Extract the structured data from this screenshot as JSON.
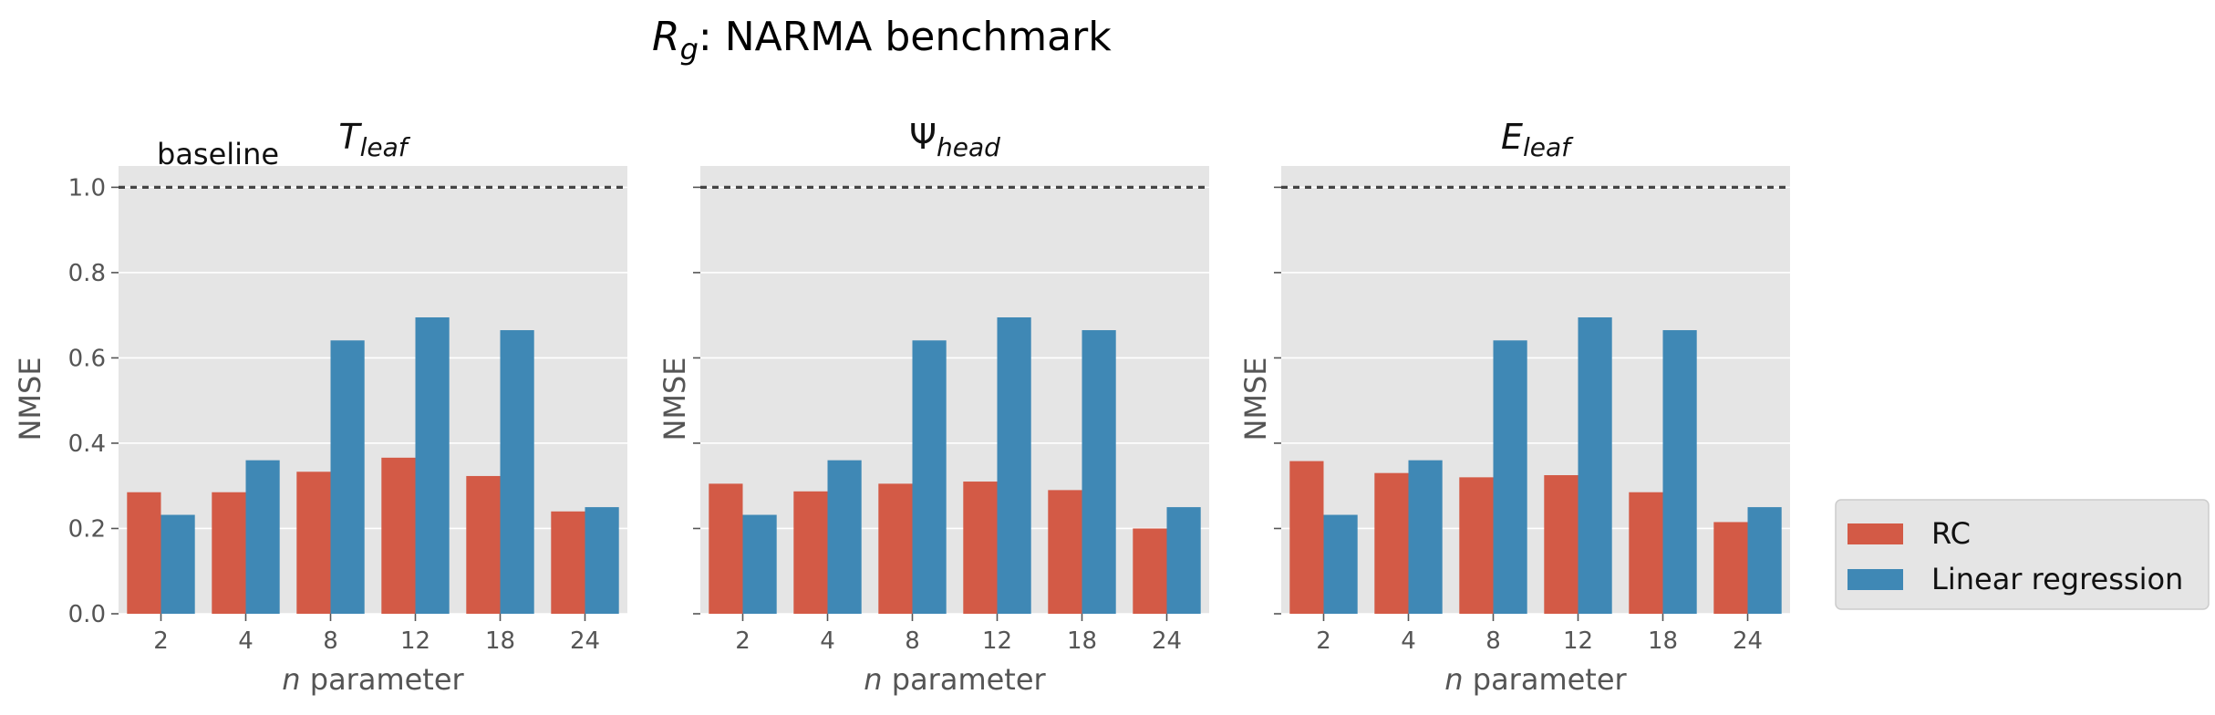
{
  "figure": {
    "title_base": "R",
    "title_sub": "g",
    "title_rest": ": NARMA benchmark"
  },
  "chart_data": [
    {
      "type": "bar",
      "title_base": "T",
      "title_sub": "leaf",
      "baseline_label": "baseline",
      "xlabel_italic": "n",
      "xlabel_rest": " parameter",
      "ylabel": "NMSE",
      "ylim": [
        0,
        1.05
      ],
      "yticks": [
        "0.0",
        "0.2",
        "0.4",
        "0.6",
        "0.8",
        "1.0"
      ],
      "baseline": 1.0,
      "categories": [
        "2",
        "4",
        "8",
        "12",
        "18",
        "24"
      ],
      "series": [
        {
          "name": "RC",
          "color": "#d35a46",
          "values": [
            0.285,
            0.285,
            0.333,
            0.366,
            0.323,
            0.24
          ]
        },
        {
          "name": "Linear regression",
          "color": "#3f88b5",
          "values": [
            0.232,
            0.36,
            0.641,
            0.695,
            0.665,
            0.25
          ]
        }
      ]
    },
    {
      "type": "bar",
      "title_base": "Ψ",
      "title_sub": "head",
      "xlabel_italic": "n",
      "xlabel_rest": " parameter",
      "ylabel": "NMSE",
      "ylim": [
        0,
        1.05
      ],
      "baseline": 1.0,
      "categories": [
        "2",
        "4",
        "8",
        "12",
        "18",
        "24"
      ],
      "series": [
        {
          "name": "RC",
          "color": "#d35a46",
          "values": [
            0.305,
            0.287,
            0.305,
            0.31,
            0.29,
            0.2
          ]
        },
        {
          "name": "Linear regression",
          "color": "#3f88b5",
          "values": [
            0.232,
            0.36,
            0.641,
            0.695,
            0.665,
            0.25
          ]
        }
      ]
    },
    {
      "type": "bar",
      "title_base": "E",
      "title_sub": "leaf",
      "xlabel_italic": "n",
      "xlabel_rest": " parameter",
      "ylabel": "NMSE",
      "ylim": [
        0,
        1.05
      ],
      "baseline": 1.0,
      "categories": [
        "2",
        "4",
        "8",
        "12",
        "18",
        "24"
      ],
      "series": [
        {
          "name": "RC",
          "color": "#d35a46",
          "values": [
            0.358,
            0.33,
            0.32,
            0.325,
            0.285,
            0.215
          ]
        },
        {
          "name": "Linear regression",
          "color": "#3f88b5",
          "values": [
            0.232,
            0.36,
            0.641,
            0.695,
            0.665,
            0.25
          ]
        }
      ]
    }
  ],
  "legend": {
    "placement": "lower-right outside",
    "items": [
      {
        "label": "RC",
        "color": "#d35a46"
      },
      {
        "label": "Linear regression",
        "color": "#3f88b5"
      }
    ]
  }
}
